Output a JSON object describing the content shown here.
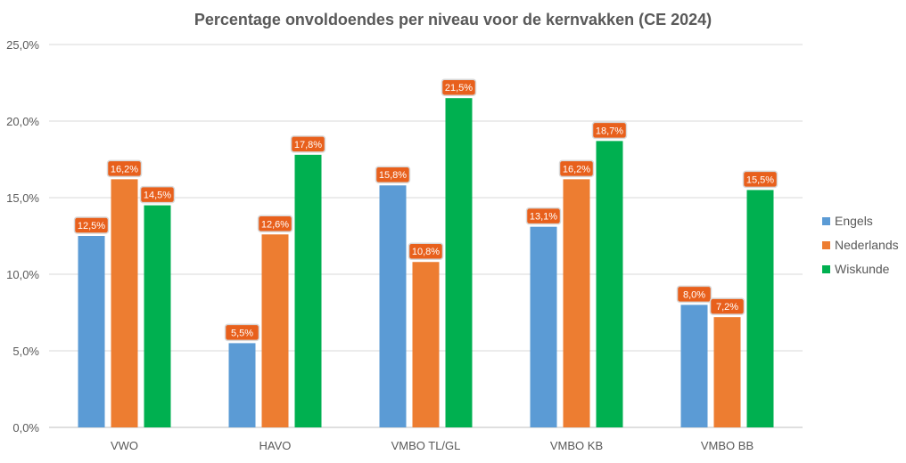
{
  "chart_data": {
    "type": "bar",
    "title": "Percentage onvoldoendes per niveau voor de kernvakken (CE 2024)",
    "xlabel": "",
    "ylabel": "",
    "ylim": [
      0,
      25
    ],
    "yticks": [
      0,
      5,
      10,
      15,
      20,
      25
    ],
    "ytick_labels": [
      "0,0%",
      "5,0%",
      "10,0%",
      "15,0%",
      "20,0%",
      "25,0%"
    ],
    "grid": true,
    "legend_position": "right",
    "categories": [
      "VWO",
      "HAVO",
      "VMBO TL/GL",
      "VMBO KB",
      "VMBO BB"
    ],
    "series": [
      {
        "name": "Engels",
        "color": "#5B9BD5",
        "values": [
          12.5,
          5.5,
          15.8,
          13.1,
          8.0
        ],
        "labels": [
          "12,5%",
          "5,5%",
          "15,8%",
          "13,1%",
          "8,0%"
        ]
      },
      {
        "name": "Nederlands",
        "color": "#ED7D31",
        "values": [
          16.2,
          12.6,
          10.8,
          16.2,
          7.2
        ],
        "labels": [
          "16,2%",
          "12,6%",
          "10,8%",
          "16,2%",
          "7,2%"
        ]
      },
      {
        "name": "Wiskunde",
        "color": "#00B050",
        "values": [
          14.5,
          17.8,
          21.5,
          18.7,
          15.5
        ],
        "labels": [
          "14,5%",
          "17,8%",
          "21,5%",
          "18,7%",
          "15,5%"
        ]
      }
    ],
    "data_label_color": "#E8601C"
  }
}
